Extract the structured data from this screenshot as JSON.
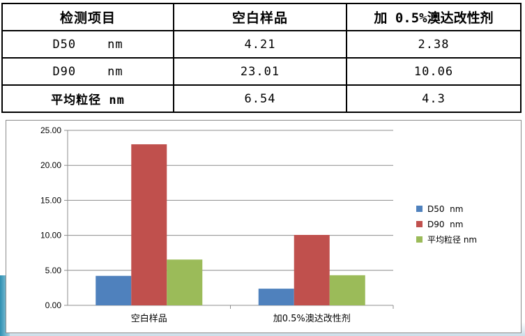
{
  "table": {
    "headers": [
      "检测项目",
      "空白样品",
      "加 0.5%澳达改性剂"
    ],
    "rows": [
      {
        "label": "D50    nm",
        "values": [
          "4.21",
          "2.38"
        ]
      },
      {
        "label": "D90    nm",
        "values": [
          "23.01",
          "10.06"
        ]
      },
      {
        "label": "平均粒径 nm",
        "values": [
          "6.54",
          "4.3"
        ]
      }
    ]
  },
  "chart_data": {
    "type": "bar",
    "categories": [
      "空白样品",
      "加0.5%澳达改性剂"
    ],
    "series": [
      {
        "name": "D50  nm",
        "values": [
          4.21,
          2.38
        ],
        "color": "#4f81bd"
      },
      {
        "name": "D90  nm",
        "values": [
          23.01,
          10.06
        ],
        "color": "#c0504d"
      },
      {
        "name": "平均粒径 nm",
        "values": [
          6.54,
          4.3
        ],
        "color": "#9bbb59"
      }
    ],
    "yticks": [
      "0.00",
      "5.00",
      "10.00",
      "15.00",
      "20.00",
      "25.00"
    ],
    "ylim": [
      0,
      25
    ],
    "grid": true,
    "legend": "right",
    "title": "",
    "xlabel": "",
    "ylabel": ""
  }
}
